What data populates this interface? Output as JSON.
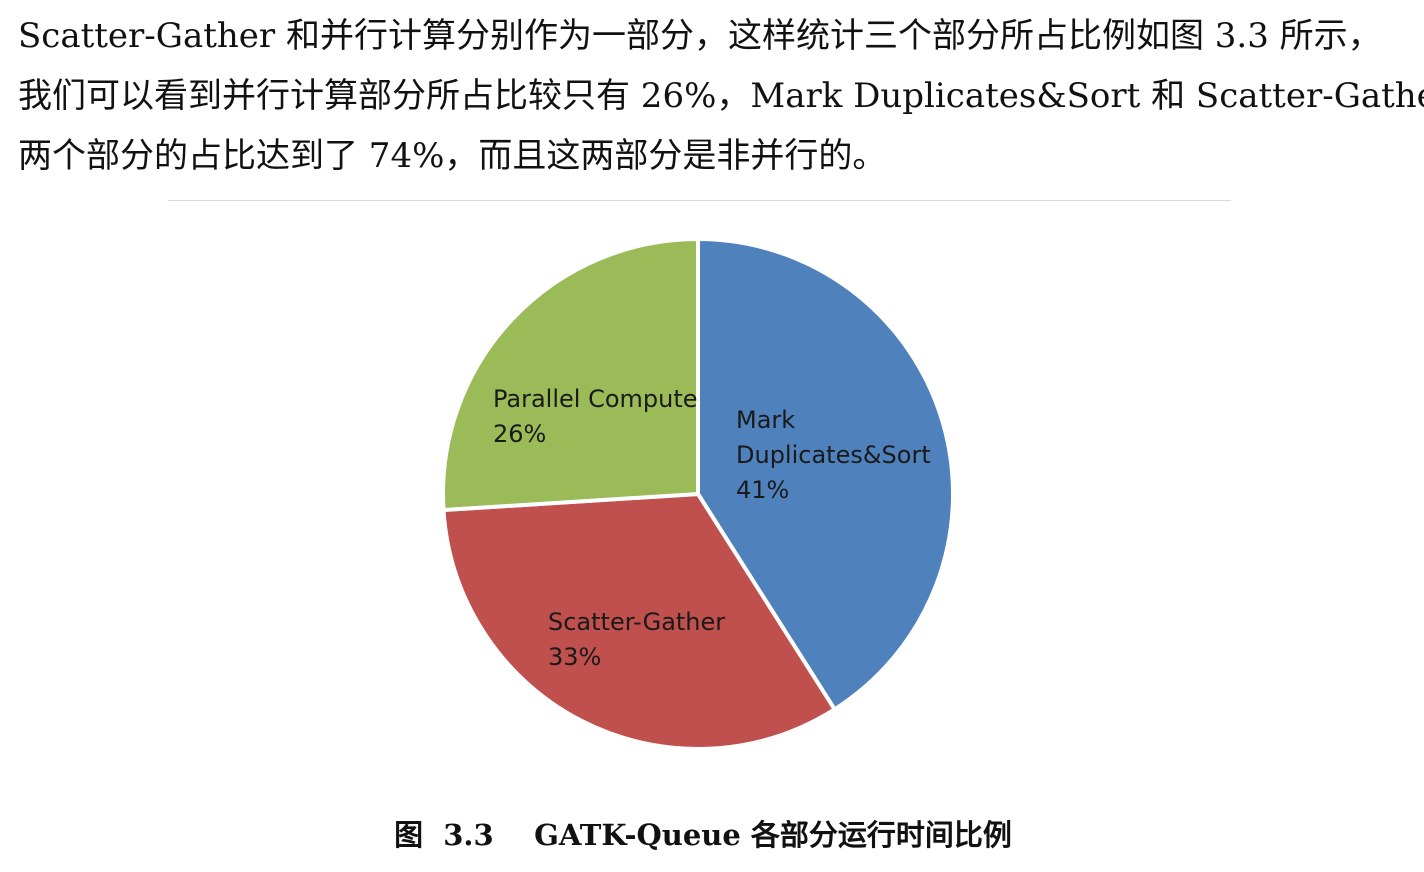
{
  "document": {
    "paragraph_lines": [
      "Scatter-Gather 和并行计算分别作为一部分，这样统计三个部分所占比例如图 3.3 所示，",
      "我们可以看到并行计算部分所占比较只有 26%，Mark Duplicates&Sort 和 Scatter-Gather",
      "两个部分的占比达到了 74%，而且这两部分是非并行的。"
    ],
    "caption": "图  3.3    GATK-Queue 各部分运行时间比例"
  },
  "chart_data": {
    "type": "pie",
    "title": "",
    "start_angle_deg": 0,
    "direction": "clockwise",
    "slices": [
      {
        "label_lines": [
          "Mark",
          "Duplicates&Sort"
        ],
        "value": 41,
        "value_label": "41%",
        "color": "#4f81bd"
      },
      {
        "label_lines": [
          "Scatter-Gather"
        ],
        "value": 33,
        "value_label": "33%",
        "color": "#c0504d"
      },
      {
        "label_lines": [
          "Parallel Compute"
        ],
        "value": 26,
        "value_label": "26%",
        "color": "#9bbb59"
      }
    ],
    "slice_border_color": "#ffffff",
    "legend": "none"
  }
}
